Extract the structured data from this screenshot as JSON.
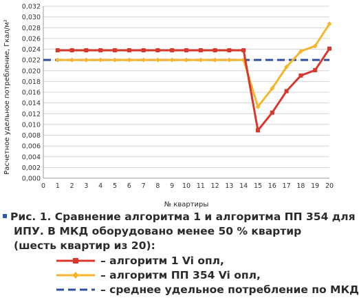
{
  "chart_data": {
    "type": "line",
    "ylabel": "Расчетное удельное потребление, Гкал/м²",
    "xlabel": "№ квартиры",
    "xlim": [
      0,
      20
    ],
    "ylim": [
      0,
      0.032
    ],
    "y_step": 0.002,
    "grid": true,
    "x": [
      1,
      2,
      3,
      4,
      5,
      6,
      7,
      8,
      9,
      10,
      11,
      12,
      13,
      14,
      15,
      16,
      17,
      18,
      19,
      20
    ],
    "series": [
      {
        "name": "алгоритм 1 Vi опл",
        "color": "#d9372b",
        "style": "solid",
        "marker": "square",
        "values": [
          0.0238,
          0.0238,
          0.0238,
          0.0238,
          0.0238,
          0.0238,
          0.0238,
          0.0238,
          0.0238,
          0.0238,
          0.0238,
          0.0238,
          0.0238,
          0.0238,
          0.0089,
          0.0122,
          0.0162,
          0.0191,
          0.0201,
          0.0241
        ]
      },
      {
        "name": "алгоритм ПП 354 Vi опл",
        "color": "#f5b52c",
        "style": "solid",
        "marker": "diamond",
        "values": [
          0.022,
          0.022,
          0.022,
          0.022,
          0.022,
          0.022,
          0.022,
          0.022,
          0.022,
          0.022,
          0.022,
          0.022,
          0.022,
          0.022,
          0.0133,
          0.0167,
          0.0207,
          0.0236,
          0.0246,
          0.0287
        ]
      },
      {
        "name": "среднее удельное потребление по МКД",
        "color": "#2e4fa0",
        "style": "dashed",
        "marker": "none",
        "values": [
          0.022,
          0.022,
          0.022,
          0.022,
          0.022,
          0.022,
          0.022,
          0.022,
          0.022,
          0.022,
          0.022,
          0.022,
          0.022,
          0.022,
          0.022,
          0.022,
          0.022,
          0.022,
          0.022,
          0.022
        ]
      }
    ]
  },
  "caption": {
    "line1": "Рис. 1. Сравнение алгоритма 1 и алгоритма ПП 354 для",
    "line2": "ИПУ. В МКД оборудовано менее 50 % квартир",
    "line3": "(шесть квартир из 20):",
    "legend": [
      {
        "label": "– алгоритм 1 Vi опл,",
        "color": "#d9372b",
        "style": "solid",
        "marker": "square"
      },
      {
        "label": "– алгоритм ПП 354 Vi опл,",
        "color": "#f5b52c",
        "style": "solid",
        "marker": "diamond"
      },
      {
        "label": "– среднее удельное потребление по МКД",
        "color": "#2e4fa0",
        "style": "dashed",
        "marker": "none"
      }
    ]
  }
}
